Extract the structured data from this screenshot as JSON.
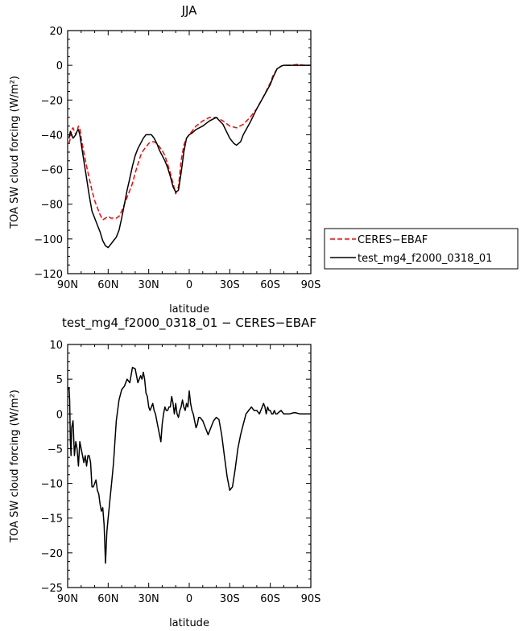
{
  "chart_data": [
    {
      "type": "line",
      "title": "JJA",
      "xlabel": "latitude",
      "ylabel": "TOA SW cloud forcing (W/m²)",
      "xlim": [
        90,
        -90
      ],
      "ylim": [
        -120,
        20
      ],
      "x_ticks": [
        90,
        60,
        30,
        0,
        -30,
        -60,
        -90
      ],
      "x_tick_labels": [
        "90N",
        "60N",
        "30N",
        "0",
        "30S",
        "60S",
        "90S"
      ],
      "y_ticks": [
        -120,
        -100,
        -80,
        -60,
        -40,
        -20,
        0,
        20
      ],
      "y_tick_labels": [
        "−120",
        "−100",
        "−80",
        "−60",
        "−40",
        "−20",
        "0",
        "20"
      ],
      "legend_position": "right, outside",
      "series": [
        {
          "name": "CERES−EBAF",
          "color": "#ff0000",
          "dash": "dashed",
          "x": [
            89,
            88,
            87,
            86,
            85,
            84,
            83,
            82,
            81,
            80,
            78,
            76,
            74,
            72,
            70,
            68,
            66,
            64,
            62,
            60,
            58,
            56,
            54,
            52,
            50,
            48,
            46,
            44,
            42,
            40,
            38,
            36,
            34,
            32,
            30,
            28,
            26,
            24,
            22,
            20,
            18,
            16,
            14,
            12,
            10,
            8,
            6,
            4,
            2,
            0,
            -2,
            -5,
            -10,
            -15,
            -20,
            -25,
            -30,
            -35,
            -40,
            -45,
            -50,
            -55,
            -60,
            -62,
            -65,
            -68,
            -70,
            -75,
            -80,
            -85,
            -90
          ],
          "y": [
            -45,
            -42,
            -37,
            -36,
            -38,
            -40,
            -38,
            -35,
            -36,
            -42,
            -50,
            -58,
            -65,
            -72,
            -78,
            -82,
            -86,
            -89,
            -88,
            -87,
            -88,
            -88,
            -88,
            -87,
            -84,
            -80,
            -76,
            -72,
            -68,
            -62,
            -57,
            -52,
            -49,
            -47,
            -45,
            -44,
            -44,
            -45,
            -47,
            -49,
            -52,
            -57,
            -62,
            -68,
            -74,
            -70,
            -55,
            -46,
            -42,
            -40,
            -38,
            -35,
            -32,
            -30,
            -30,
            -32,
            -35,
            -36,
            -34,
            -30,
            -25,
            -18,
            -10,
            -6,
            -2,
            -0.5,
            0,
            0,
            0.5,
            0,
            0
          ]
        },
        {
          "name": "test_mg4_f2000_0318_01",
          "color": "#000000",
          "dash": "solid",
          "x": [
            89,
            88,
            87,
            86,
            85,
            84,
            83,
            82,
            81,
            80,
            78,
            76,
            74,
            72,
            70,
            68,
            66,
            64,
            62,
            60,
            58,
            56,
            54,
            52,
            50,
            48,
            46,
            44,
            42,
            40,
            38,
            36,
            34,
            32,
            30,
            28,
            26,
            24,
            22,
            20,
            18,
            16,
            14,
            12,
            10,
            8,
            6,
            4,
            2,
            0,
            -2,
            -5,
            -10,
            -15,
            -20,
            -25,
            -30,
            -33,
            -35,
            -38,
            -40,
            -45,
            -50,
            -55,
            -60,
            -62,
            -65,
            -68,
            -70,
            -75,
            -80,
            -85,
            -90
          ],
          "y": [
            -42,
            -38,
            -40,
            -42,
            -41,
            -40,
            -38,
            -37,
            -40,
            -45,
            -55,
            -65,
            -75,
            -84,
            -88,
            -92,
            -96,
            -101,
            -104,
            -105,
            -103,
            -101,
            -99,
            -95,
            -88,
            -80,
            -72,
            -65,
            -58,
            -52,
            -48,
            -45,
            -42,
            -40,
            -40,
            -40,
            -42,
            -45,
            -49,
            -52,
            -55,
            -59,
            -64,
            -70,
            -73,
            -72,
            -62,
            -50,
            -42,
            -40,
            -39,
            -37,
            -35,
            -32,
            -30,
            -34,
            -42,
            -45,
            -46,
            -44,
            -40,
            -33,
            -25,
            -18,
            -11,
            -7,
            -2,
            -0.5,
            0,
            0,
            0,
            0,
            0
          ]
        }
      ]
    },
    {
      "type": "line",
      "title": "test_mg4_f2000_0318_01 − CERES−EBAF",
      "xlabel": "latitude",
      "ylabel": "TOA SW cloud forcing (W/m²)",
      "xlim": [
        90,
        -90
      ],
      "ylim": [
        -25,
        10
      ],
      "x_ticks": [
        90,
        60,
        30,
        0,
        -30,
        -60,
        -90
      ],
      "x_tick_labels": [
        "90N",
        "60N",
        "30N",
        "0",
        "30S",
        "60S",
        "90S"
      ],
      "y_ticks": [
        -25,
        -20,
        -15,
        -10,
        -5,
        0,
        5,
        10
      ],
      "y_tick_labels": [
        "−25",
        "−20",
        "−15",
        "−10",
        "−5",
        "0",
        "5",
        "10"
      ],
      "series": [
        {
          "color": "#000000",
          "dash": "solid",
          "x": [
            89.5,
            89,
            88.5,
            88,
            87.5,
            87,
            86,
            85,
            84,
            83,
            82,
            81,
            80,
            79,
            78,
            77,
            76,
            75,
            74,
            73,
            72,
            71,
            70,
            69,
            68,
            67,
            66,
            65,
            64,
            63,
            62,
            61,
            60,
            59,
            58,
            57,
            56,
            55,
            54,
            52,
            50,
            48,
            46,
            44,
            42,
            40,
            38,
            36,
            35,
            34,
            33,
            32,
            31,
            30,
            29,
            28,
            27,
            26,
            25,
            24,
            23,
            22,
            21,
            20,
            19,
            18,
            17,
            16,
            15,
            14,
            13,
            12,
            11,
            10,
            9,
            8,
            7,
            6,
            5,
            4,
            3,
            2,
            1,
            0,
            -1,
            -2,
            -3,
            -4,
            -5,
            -6,
            -7,
            -8,
            -10,
            -12,
            -14,
            -16,
            -18,
            -20,
            -22,
            -24,
            -26,
            -28,
            -30,
            -32,
            -34,
            -36,
            -38,
            -40,
            -42,
            -44,
            -46,
            -48,
            -50,
            -52,
            -54,
            -55,
            -56,
            -57,
            -58,
            -59,
            -60,
            -61,
            -62,
            -63,
            -64,
            -65,
            -66,
            -68,
            -70,
            -72,
            -74,
            -76,
            -78,
            -80,
            -82,
            -84,
            -86,
            -88,
            -90
          ],
          "y": [
            3.5,
            3.8,
            2,
            -4,
            -6,
            -2,
            -1,
            -6,
            -4,
            -5,
            -7.5,
            -4,
            -5,
            -6,
            -7,
            -6,
            -7.5,
            -6,
            -6,
            -7,
            -10.5,
            -10.5,
            -10,
            -9.5,
            -11,
            -11.5,
            -13,
            -14,
            -13.5,
            -16,
            -21.5,
            -17,
            -15,
            -13,
            -11,
            -9,
            -7,
            -4,
            -1,
            2,
            3.5,
            4,
            5,
            4.5,
            6.7,
            6.5,
            4.5,
            5.5,
            5,
            6,
            5,
            3,
            2.5,
            1,
            0.5,
            1,
            1.5,
            0.5,
            0,
            -1,
            -2,
            -3,
            -4,
            -1.5,
            0,
            1,
            0.5,
            0.5,
            1,
            1,
            2.5,
            1.5,
            0,
            1.5,
            0,
            -0.5,
            0.5,
            1,
            2,
            1,
            0.5,
            1.5,
            1,
            3.3,
            1.5,
            0.5,
            0,
            -1,
            -2,
            -1.5,
            -0.5,
            -0.5,
            -1,
            -2,
            -3,
            -2,
            -1,
            -0.5,
            -0.8,
            -3,
            -6,
            -9,
            -11,
            -10.5,
            -8,
            -5,
            -3,
            -1.5,
            0,
            0.5,
            1,
            0.5,
            0.5,
            0,
            1,
            1.5,
            1,
            0,
            1,
            0.5,
            0.5,
            0,
            0,
            0.5,
            0,
            0,
            0.2,
            0.5,
            0,
            0,
            0,
            0.1,
            0.2,
            0.1,
            0,
            0,
            0,
            0,
            0
          ]
        }
      ]
    }
  ]
}
